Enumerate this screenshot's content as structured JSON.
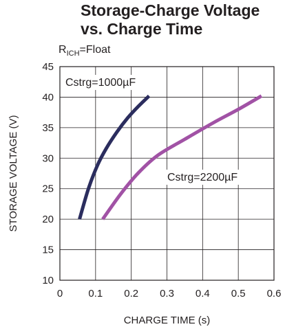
{
  "chart_data": {
    "type": "line",
    "title_line1": "Storage-Charge Voltage",
    "title_line2": "vs. Charge Time",
    "subtitle": {
      "prefix": "R",
      "sub": "ICH",
      "suffix": "=Float"
    },
    "xlabel": "CHARGE TIME (s)",
    "ylabel": "STORAGE VOLTAGE (V)",
    "xlim": [
      0,
      0.6
    ],
    "ylim": [
      10,
      45
    ],
    "xticks": [
      0,
      0.1,
      0.2,
      0.3,
      0.4,
      0.5,
      0.6
    ],
    "xtick_labels": [
      "0",
      "0.1",
      "0.2",
      "0.3",
      "0.4",
      "0.5",
      "0.6"
    ],
    "yticks": [
      10,
      15,
      20,
      25,
      30,
      35,
      40,
      45
    ],
    "ytick_labels": [
      "10",
      "15",
      "20",
      "25",
      "30",
      "35",
      "40",
      "45"
    ],
    "grid": true,
    "series": [
      {
        "name": "Cstrg=1000µF",
        "color": "#2b2d5e",
        "x": [
          0.055,
          0.08,
          0.105,
          0.13,
          0.16,
          0.19,
          0.22,
          0.25
        ],
        "y": [
          20,
          25,
          28.8,
          31.6,
          34.3,
          36.6,
          38.5,
          40.2
        ]
      },
      {
        "name": "Cstrg=2200µF",
        "color": "#a152a5",
        "x": [
          0.12,
          0.17,
          0.22,
          0.275,
          0.35,
          0.43,
          0.5,
          0.565
        ],
        "y": [
          20,
          24.1,
          27.6,
          30.5,
          33.1,
          35.8,
          38.0,
          40.2
        ]
      }
    ]
  }
}
